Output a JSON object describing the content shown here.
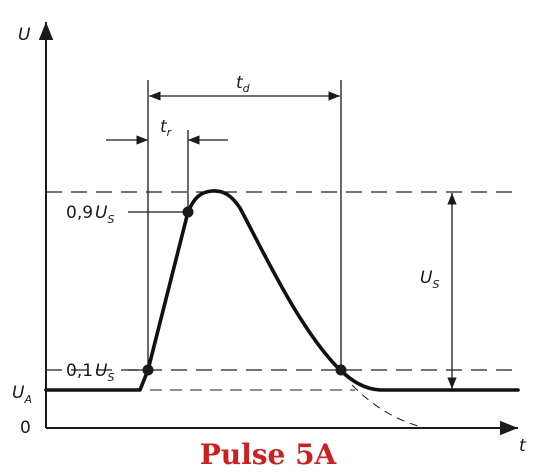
{
  "axes": {
    "y_label": "U",
    "x_label": "t",
    "zero_label": "0",
    "baseline_label": "U",
    "baseline_sub": "A"
  },
  "levels": {
    "high_coef": "0,9",
    "high_label": "U",
    "high_sub": "S",
    "low_coef": "0,1",
    "low_label": "U",
    "low_sub": "S"
  },
  "dimensions": {
    "td_label": "t",
    "td_sub": "d",
    "tr_label": "t",
    "tr_sub": "r",
    "us_label": "U",
    "us_sub": "S"
  },
  "caption": {
    "text": "Pulse 5A",
    "color": "#cc1f1f"
  }
}
